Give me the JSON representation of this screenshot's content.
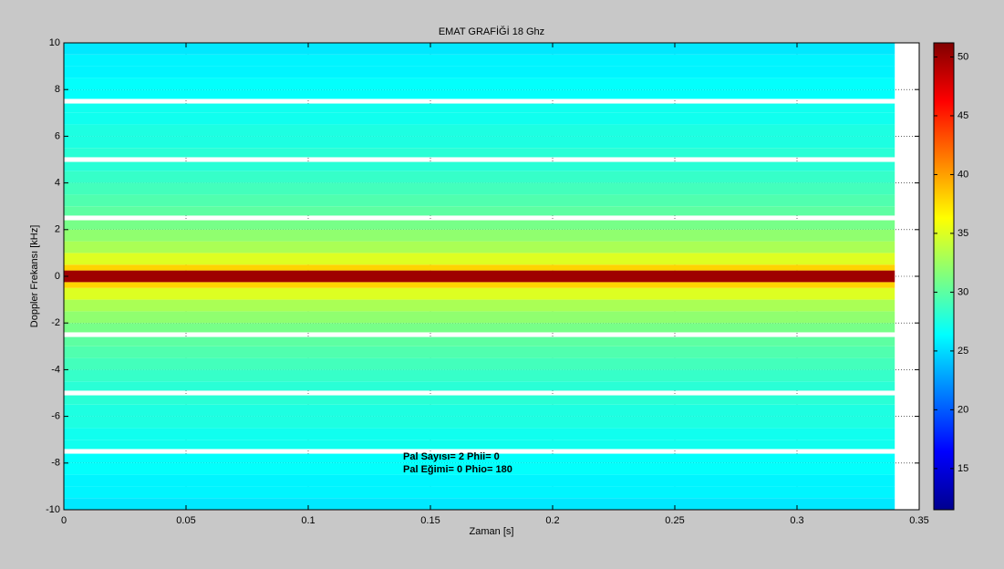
{
  "chart_data": {
    "type": "heatmap",
    "title": "EMAT GRAFİĞİ 18 Ghz",
    "x_label": "Zaman [s]",
    "y_label": "Doppler Frekansı [kHz]",
    "xlim": [
      0,
      0.35
    ],
    "xticks": [
      0,
      0.05,
      0.1,
      0.15,
      0.2,
      0.25,
      0.3,
      0.35
    ],
    "ylim": [
      -10,
      10
    ],
    "yticks": [
      -10,
      -8,
      -6,
      -4,
      -2,
      0,
      2,
      4,
      6,
      8,
      10
    ],
    "grid": true,
    "colormap": "jet",
    "clim": [
      11.5,
      51.2
    ],
    "cticks": [
      15,
      20,
      25,
      30,
      35,
      40,
      45,
      50
    ],
    "xbins": [
      0,
      0.34
    ],
    "ybins": [
      -10,
      -9.5,
      -9,
      -8.5,
      -8,
      -7.6,
      -7.4,
      -7,
      -6.5,
      -6,
      -5.5,
      -5.1,
      -4.9,
      -4.5,
      -4,
      -3.5,
      -3,
      -2.6,
      -2.4,
      -2,
      -1.5,
      -1,
      -0.5,
      -0.25,
      0.25,
      0.5,
      1,
      1.5,
      2,
      2.4,
      2.6,
      3,
      3.5,
      4,
      4.5,
      4.9,
      5.1,
      5.5,
      6,
      6.5,
      7,
      7.4,
      7.6,
      8,
      8.5,
      9,
      9.5,
      10
    ],
    "values": [
      [
        25.5
      ],
      [
        26
      ],
      [
        26
      ],
      [
        26.5
      ],
      [
        26.5
      ],
      [
        null
      ],
      [
        27
      ],
      [
        27
      ],
      [
        27.5
      ],
      [
        27.5
      ],
      [
        28
      ],
      [
        null
      ],
      [
        28
      ],
      [
        28.5
      ],
      [
        29
      ],
      [
        29.5
      ],
      [
        30
      ],
      [
        null
      ],
      [
        31
      ],
      [
        32
      ],
      [
        33
      ],
      [
        35
      ],
      [
        38
      ],
      [
        50
      ],
      [
        38
      ],
      [
        35
      ],
      [
        33
      ],
      [
        32
      ],
      [
        31
      ],
      [
        null
      ],
      [
        30
      ],
      [
        29.5
      ],
      [
        29
      ],
      [
        28.5
      ],
      [
        28
      ],
      [
        null
      ],
      [
        28
      ],
      [
        27.5
      ],
      [
        27.5
      ],
      [
        27
      ],
      [
        27
      ],
      [
        null
      ],
      [
        26.5
      ],
      [
        26.5
      ],
      [
        26
      ],
      [
        26
      ],
      [
        25.5
      ]
    ],
    "annotations": [
      "Pal Sayısı= 2 Phii= 0",
      "Pal Eğimi= 0 Phio= 180"
    ]
  }
}
